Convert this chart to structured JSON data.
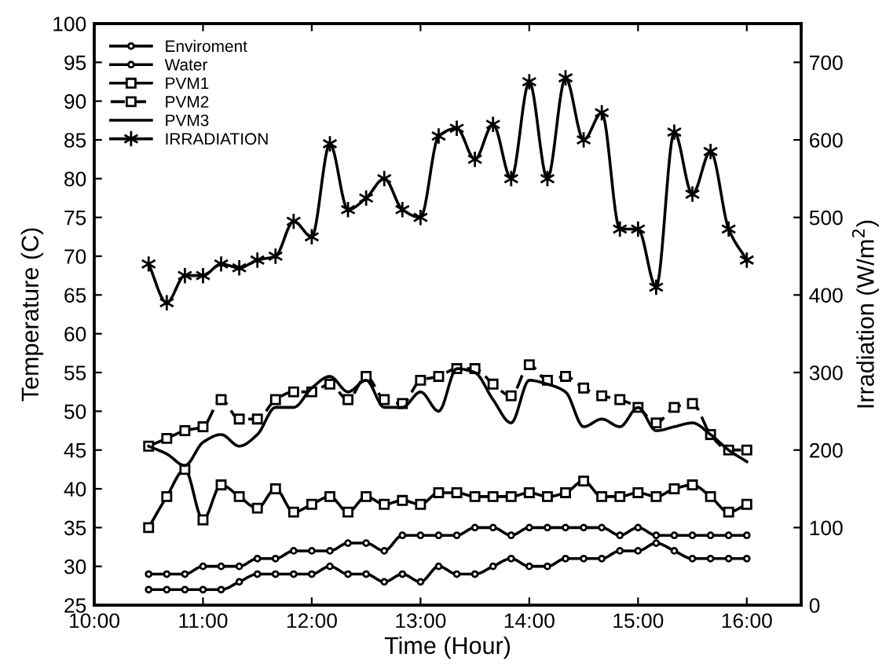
{
  "chart_data": {
    "type": "line",
    "xlabel": "Time (Hour)",
    "ylabel": "Temperature (C)",
    "y2label": "Irradiation (W/m$^{2}$)",
    "x": [
      10.5,
      10.6667,
      10.8333,
      11.0,
      11.1667,
      11.3333,
      11.5,
      11.6667,
      11.8333,
      12.0,
      12.1667,
      12.3333,
      12.5,
      12.6667,
      12.8333,
      13.0,
      13.1667,
      13.3333,
      13.5,
      13.6667,
      13.8333,
      14.0,
      14.1667,
      14.3333,
      14.5,
      14.6667,
      14.8333,
      15.0,
      15.1667,
      15.3333,
      15.5,
      15.6667,
      15.8333,
      16.0
    ],
    "xlim": [
      10,
      16.5
    ],
    "xticks": [
      {
        "value": 10,
        "label": "10:00"
      },
      {
        "value": 11,
        "label": "11:00"
      },
      {
        "value": 12,
        "label": "12:00"
      },
      {
        "value": 13,
        "label": "13:00"
      },
      {
        "value": 14,
        "label": "14:00"
      },
      {
        "value": 15,
        "label": "15:00"
      },
      {
        "value": 16,
        "label": "16:00"
      }
    ],
    "ylim": [
      25,
      100
    ],
    "yticks": [
      25,
      30,
      35,
      40,
      45,
      50,
      55,
      60,
      65,
      70,
      75,
      80,
      85,
      90,
      95,
      100
    ],
    "y2lim": [
      0,
      750
    ],
    "y2ticks": [
      0,
      100,
      200,
      300,
      400,
      500,
      600,
      700
    ],
    "legend": "top left",
    "grid": false,
    "series": [
      {
        "name": "Enviroment",
        "color": "#000000",
        "marker": "circle",
        "line_style": "solid",
        "values": [
          27,
          27,
          27,
          27,
          27,
          28,
          29,
          29,
          29,
          29,
          30,
          29,
          29,
          28,
          29,
          28,
          30,
          29,
          29,
          30,
          31,
          30,
          30,
          31,
          31,
          31,
          32,
          32,
          33,
          32,
          31,
          31,
          31,
          31
        ]
      },
      {
        "name": "Water",
        "color": "#000000",
        "marker": "circle",
        "line_style": "solid",
        "values": [
          29,
          29,
          29,
          30,
          30,
          30,
          31,
          31,
          32,
          32,
          32,
          33,
          33,
          32,
          34,
          34,
          34,
          34,
          35,
          35,
          34,
          35,
          35,
          35,
          35,
          35,
          34,
          35,
          34,
          34,
          34,
          34,
          34,
          34
        ]
      },
      {
        "name": "PVM1",
        "color": "#000000",
        "marker": "square",
        "line_style": "solid",
        "values": [
          35,
          39,
          42.5,
          36,
          40.5,
          39,
          37.5,
          40,
          37,
          38,
          39,
          37,
          39,
          38,
          38.5,
          38,
          39.5,
          39.5,
          39,
          39,
          39,
          39.5,
          39,
          39.5,
          41,
          39,
          39,
          39.5,
          39,
          40,
          40.5,
          39,
          37,
          38
        ]
      },
      {
        "name": "PVM2",
        "color": "#000000",
        "marker": "square",
        "line_style": "dashed",
        "values": [
          45.5,
          46.5,
          47.5,
          48,
          51.5,
          49,
          49,
          51.5,
          52.5,
          52.5,
          53.5,
          51.5,
          54.5,
          51.5,
          51,
          54,
          54.5,
          55.5,
          55.5,
          53.5,
          52,
          56,
          54,
          54.5,
          53,
          52,
          51.5,
          50.5,
          48.5,
          50.5,
          51,
          47,
          45,
          45
        ]
      },
      {
        "name": "PVM3",
        "color": "#000000",
        "marker": "none",
        "line_style": "solid",
        "values": [
          45.5,
          44.5,
          43,
          46,
          47,
          45.5,
          47,
          50.5,
          50.5,
          53,
          54.5,
          52.5,
          54,
          50.5,
          50.5,
          52.5,
          50,
          55.5,
          55,
          51.5,
          48.5,
          54,
          53.5,
          52.5,
          48,
          49,
          48,
          50.5,
          47.5,
          48,
          48.5,
          47,
          45,
          43.5
        ]
      },
      {
        "name": "IRRADIATION",
        "color": "#000000",
        "marker": "cross",
        "line_style": "solid",
        "axis": "y2",
        "values": [
          440,
          390,
          425,
          425,
          440,
          435,
          445,
          450,
          495,
          475,
          595,
          510,
          525,
          550,
          510,
          500,
          605,
          615,
          575,
          620,
          550,
          675,
          550,
          680,
          600,
          635,
          485,
          485,
          410,
          610,
          530,
          585,
          485,
          445
        ]
      }
    ]
  }
}
